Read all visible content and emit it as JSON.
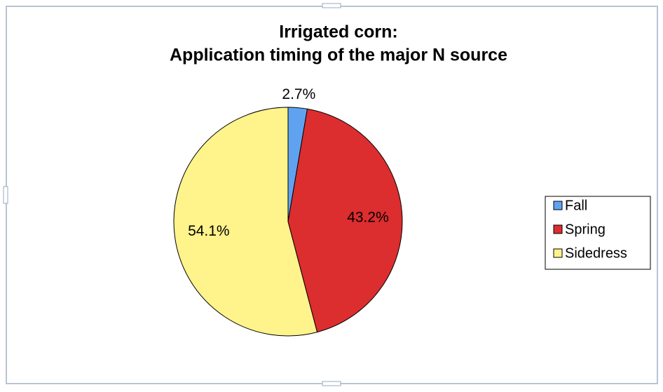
{
  "chart_data": {
    "type": "pie",
    "title": [
      "Irrigated corn:",
      "Application timing of the major N source"
    ],
    "categories": [
      "Fall",
      "Spring",
      "Sidedress"
    ],
    "values": [
      2.7,
      43.2,
      54.1
    ],
    "value_labels": [
      "2.7%",
      "43.2%",
      "54.1%"
    ],
    "colors": [
      "#5fa3f0",
      "#dc2d2f",
      "#fff38c"
    ],
    "legend": "right"
  }
}
